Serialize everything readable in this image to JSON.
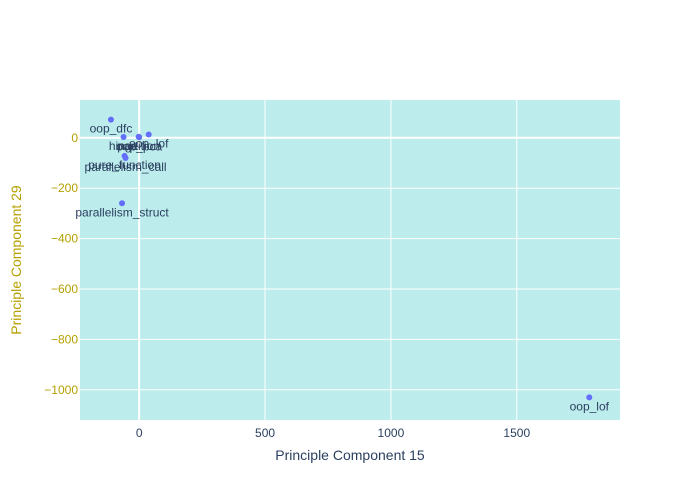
{
  "chart_data": {
    "type": "scatter",
    "xlabel": "Principle Component 15",
    "ylabel": "Principle Component 29",
    "xlim": [
      -235,
      1910
    ],
    "ylim": [
      -1120,
      150
    ],
    "xticks": [
      0,
      500,
      1000,
      1500
    ],
    "yticks": [
      0,
      -200,
      -400,
      -600,
      -800,
      -1000
    ],
    "grid": true,
    "legend": "none",
    "points": [
      {
        "label": "oop_dfc",
        "x": -112,
        "y": 72
      },
      {
        "label": "hinge",
        "x": -62,
        "y": 3
      },
      {
        "label": "partition",
        "x": -2,
        "y": 4
      },
      {
        "label": "oop_pca",
        "x": 0,
        "y": 2
      },
      {
        "label": "oop_lof",
        "x": 38,
        "y": 13
      },
      {
        "label": "pure_function",
        "x": -58,
        "y": -72
      },
      {
        "label": "parallelism_call",
        "x": -54,
        "y": -80
      },
      {
        "label": "parallelism_struct",
        "x": -68,
        "y": -260
      },
      {
        "label": "oop_lof",
        "x": 1788,
        "y": -1030
      }
    ],
    "colors": {
      "plot_bg": "#bcecec",
      "marker": "#636efa",
      "grid": "#ffffff",
      "x_text": "#2a3f5f",
      "y_text": "#b5a000",
      "label_text": "#2a3f5f"
    }
  }
}
